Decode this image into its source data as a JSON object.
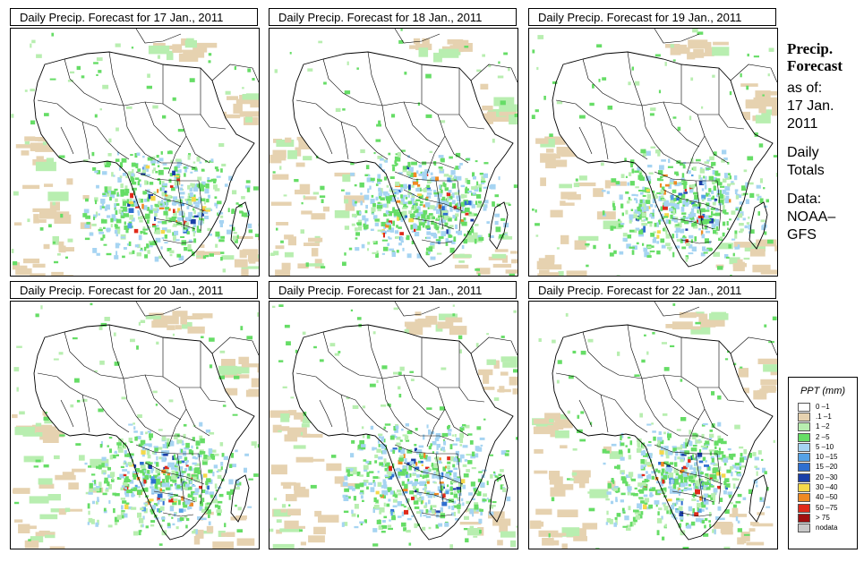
{
  "panels": [
    {
      "title": "Daily Precip. Forecast for  17 Jan., 2011"
    },
    {
      "title": "Daily Precip. Forecast for  18 Jan., 2011"
    },
    {
      "title": "Daily Precip. Forecast for  19 Jan., 2011"
    },
    {
      "title": "Daily Precip. Forecast for  20 Jan., 2011"
    },
    {
      "title": "Daily Precip. Forecast for  21 Jan., 2011"
    },
    {
      "title": "Daily Precip. Forecast for  22 Jan., 2011"
    }
  ],
  "side": {
    "title_line1": "Precip.",
    "title_line2": "Forecast",
    "asof_line1": "as of:",
    "asof_line2": "17 Jan.",
    "asof_line3": "2011",
    "daily_line1": "Daily",
    "daily_line2": "Totals",
    "data_line1": "Data:",
    "data_line2": "NOAA–",
    "data_line3": "GFS"
  },
  "legend": {
    "title": "PPT (mm)",
    "items": [
      {
        "label": "0 –1",
        "color": "#ffffff"
      },
      {
        "label": ".1 –1",
        "color": "#e6d2b0"
      },
      {
        "label": "1 –2",
        "color": "#b8eeb0"
      },
      {
        "label": "2 –5",
        "color": "#66dd66"
      },
      {
        "label": "5 –10",
        "color": "#a6d4f2"
      },
      {
        "label": "10 –15",
        "color": "#55a2e6"
      },
      {
        "label": "15 –20",
        "color": "#2f6fd0"
      },
      {
        "label": "20 –30",
        "color": "#1a3fa8"
      },
      {
        "label": "30 –40",
        "color": "#f5d84a"
      },
      {
        "label": "40 –50",
        "color": "#f08a24"
      },
      {
        "label": "50 –75",
        "color": "#e02a1a"
      },
      {
        "label": "> 75",
        "color": "#a01010"
      },
      {
        "label": "nodata",
        "color": "#c8c8c8"
      }
    ]
  }
}
